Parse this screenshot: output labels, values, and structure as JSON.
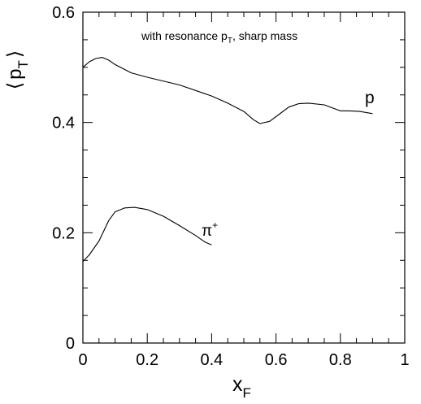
{
  "chart_data": {
    "type": "line",
    "title": "",
    "annotation": {
      "main": "with resonance p",
      "sub": "T",
      "tail": ", sharp mass"
    },
    "ylabel": {
      "open": "⟨",
      "var": "p",
      "sub": "T",
      "close": "⟩"
    },
    "xlabel": {
      "var": "x",
      "sub": "F"
    },
    "xlim": [
      0,
      1
    ],
    "ylim": [
      0,
      0.6
    ],
    "x_ticks": [
      "0",
      "0.2",
      "0.4",
      "0.6",
      "0.8",
      "1"
    ],
    "y_ticks": [
      "0",
      "0.2",
      "0.4",
      "0.6"
    ],
    "grid": false,
    "series": [
      {
        "label": {
          "main": "p",
          "sup": ""
        },
        "x": [
          0.0,
          0.02,
          0.04,
          0.06,
          0.08,
          0.1,
          0.15,
          0.2,
          0.3,
          0.4,
          0.45,
          0.5,
          0.53,
          0.55,
          0.58,
          0.61,
          0.64,
          0.67,
          0.7,
          0.75,
          0.8,
          0.83,
          0.86,
          0.9
        ],
        "y": [
          0.5,
          0.51,
          0.516,
          0.518,
          0.513,
          0.505,
          0.49,
          0.482,
          0.468,
          0.448,
          0.435,
          0.42,
          0.405,
          0.398,
          0.402,
          0.415,
          0.428,
          0.434,
          0.435,
          0.432,
          0.421,
          0.421,
          0.42,
          0.416
        ]
      },
      {
        "label": {
          "main": "π",
          "sup": "+"
        },
        "x": [
          0.0,
          0.02,
          0.05,
          0.08,
          0.1,
          0.13,
          0.16,
          0.2,
          0.25,
          0.3,
          0.35,
          0.38,
          0.4
        ],
        "y": [
          0.148,
          0.16,
          0.185,
          0.222,
          0.238,
          0.245,
          0.246,
          0.242,
          0.23,
          0.213,
          0.195,
          0.183,
          0.178
        ]
      }
    ]
  }
}
